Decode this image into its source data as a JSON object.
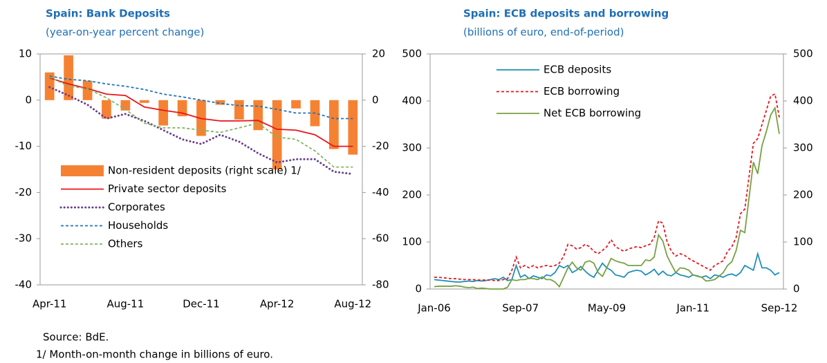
{
  "chart_data": [
    {
      "type": "combo",
      "title": "Spain: Bank Deposits",
      "subtitle": "(year-on-year percent change)",
      "categories": [
        "Apr-11",
        null,
        null,
        null,
        "Aug-11",
        null,
        null,
        null,
        "Dec-11",
        null,
        null,
        null,
        "Apr-12",
        null,
        null,
        null,
        "Aug-12"
      ],
      "ylim": [
        -40,
        10
      ],
      "yticks": [
        -40,
        -30,
        -20,
        -10,
        0,
        10
      ],
      "y2lim": [
        -80,
        20
      ],
      "y2ticks": [
        -80,
        -60,
        -40,
        -20,
        0,
        20
      ],
      "series": [
        {
          "name": "Non-resident deposits (right scale) 1/",
          "type": "bar",
          "axis": "y2",
          "color": "#f58233",
          "values": [
            12,
            19.4,
            8.4,
            -8,
            -4.5,
            -1.2,
            -11,
            -7,
            -15.5,
            -2,
            -8.4,
            -13,
            -30,
            -3.6,
            -11.3,
            -21.2,
            -23.6
          ]
        },
        {
          "name": "Private sector deposits",
          "type": "line",
          "dash": "solid",
          "color": "#e8141b",
          "values": [
            4.8,
            3.5,
            2.5,
            1.3,
            1.0,
            -1.5,
            -2.2,
            -2.8,
            -4,
            -4.5,
            -4.5,
            -4.4,
            -6.3,
            -6.5,
            -7.5,
            -10,
            -10
          ]
        },
        {
          "name": "Corporates",
          "type": "line",
          "dash": "dotted",
          "color": "#6b3e8f",
          "values": [
            2.8,
            1,
            -1,
            -4,
            -3,
            -4.5,
            -6.5,
            -8.5,
            -9.5,
            -7.5,
            -9,
            -11.5,
            -13.5,
            -12.8,
            -12.8,
            -15.5,
            -16
          ]
        },
        {
          "name": "Households",
          "type": "line",
          "dash": "dashed",
          "color": "#1f73b5",
          "values": [
            5.2,
            4.5,
            4.2,
            3.5,
            3.0,
            2.3,
            1.3,
            0.7,
            0,
            -0.7,
            -1.2,
            -1.3,
            -2,
            -2.8,
            -2.8,
            -4,
            -4
          ]
        },
        {
          "name": "Others",
          "type": "line",
          "dash": "dashed",
          "color": "#7fb65e",
          "values": [
            5,
            3,
            2.5,
            0.5,
            -2,
            -5,
            -6,
            -6,
            -6.5,
            -7,
            -6,
            -5,
            -8,
            -8.5,
            -11,
            -14.5,
            -14.5
          ]
        }
      ]
    },
    {
      "type": "line",
      "title": "Spain: ECB deposits and borrowing",
      "subtitle": "(billions of euro, end-of-period)",
      "categories": [
        "Jan-06",
        null,
        null,
        null,
        null,
        null,
        null,
        null,
        null,
        null,
        null,
        null,
        null,
        null,
        null,
        null,
        null,
        null,
        null,
        null,
        "Sep-07",
        null,
        null,
        null,
        null,
        null,
        null,
        null,
        null,
        null,
        null,
        null,
        null,
        null,
        null,
        null,
        null,
        null,
        null,
        null,
        "May-09",
        null,
        null,
        null,
        null,
        null,
        null,
        null,
        null,
        null,
        null,
        null,
        null,
        null,
        null,
        null,
        null,
        null,
        null,
        null,
        "Jan-11",
        null,
        null,
        null,
        null,
        null,
        null,
        null,
        null,
        null,
        null,
        null,
        null,
        null,
        null,
        null,
        null,
        null,
        null,
        null,
        "Sep-12"
      ],
      "ylim": [
        0,
        500
      ],
      "yticks": [
        0,
        100,
        200,
        300,
        400,
        500
      ],
      "y2lim": [
        0,
        500
      ],
      "y2ticks": [
        0,
        100,
        200,
        300,
        400,
        500
      ],
      "series": [
        {
          "name": "ECB deposits",
          "dash": "solid",
          "color": "#1f8fb8",
          "values": [
            20,
            19,
            18,
            17,
            16,
            15,
            15,
            16,
            17,
            16,
            18,
            17,
            18,
            20,
            22,
            20,
            25,
            18,
            20,
            50,
            25,
            30,
            22,
            28,
            25,
            22,
            30,
            28,
            35,
            50,
            45,
            50,
            35,
            40,
            48,
            38,
            30,
            25,
            40,
            55,
            45,
            40,
            30,
            28,
            25,
            35,
            38,
            40,
            38,
            30,
            35,
            42,
            30,
            38,
            30,
            28,
            35,
            30,
            28,
            25,
            30,
            28,
            25,
            28,
            22,
            30,
            28,
            25,
            30,
            32,
            28,
            35,
            50,
            45,
            40,
            75,
            45,
            45,
            40,
            30,
            35
          ]
        },
        {
          "name": "ECB borrowing",
          "dash": "dashed",
          "color": "#e8141b",
          "values": [
            25,
            25,
            24,
            23,
            22,
            22,
            21,
            20,
            20,
            20,
            19,
            19,
            19,
            19,
            18,
            18,
            20,
            22,
            40,
            68,
            45,
            50,
            45,
            50,
            45,
            48,
            50,
            48,
            50,
            55,
            70,
            95,
            92,
            85,
            88,
            95,
            90,
            80,
            75,
            82,
            90,
            105,
            90,
            85,
            80,
            85,
            88,
            90,
            88,
            92,
            95,
            110,
            145,
            140,
            100,
            80,
            70,
            75,
            72,
            65,
            60,
            55,
            50,
            45,
            40,
            50,
            55,
            60,
            80,
            90,
            110,
            160,
            170,
            240,
            310,
            320,
            350,
            380,
            410,
            415,
            365
          ]
        },
        {
          "name": "Net ECB borrowing",
          "dash": "solid",
          "color": "#77a040",
          "values": [
            5,
            6,
            6,
            6,
            6,
            7,
            6,
            4,
            3,
            4,
            1,
            2,
            1,
            0,
            0,
            0,
            0,
            4,
            20,
            18,
            20,
            20,
            23,
            22,
            20,
            26,
            20,
            20,
            15,
            5,
            25,
            45,
            57,
            45,
            40,
            57,
            60,
            55,
            35,
            27,
            45,
            65,
            60,
            57,
            55,
            50,
            50,
            50,
            50,
            62,
            60,
            68,
            115,
            102,
            70,
            52,
            35,
            45,
            44,
            40,
            30,
            27,
            25,
            17,
            18,
            20,
            27,
            35,
            50,
            58,
            82,
            125,
            120,
            195,
            270,
            245,
            305,
            335,
            370,
            385,
            330
          ]
        }
      ]
    }
  ],
  "source": "Source: BdE.",
  "footnote": "1/ Month-on-month change in billions of euro."
}
